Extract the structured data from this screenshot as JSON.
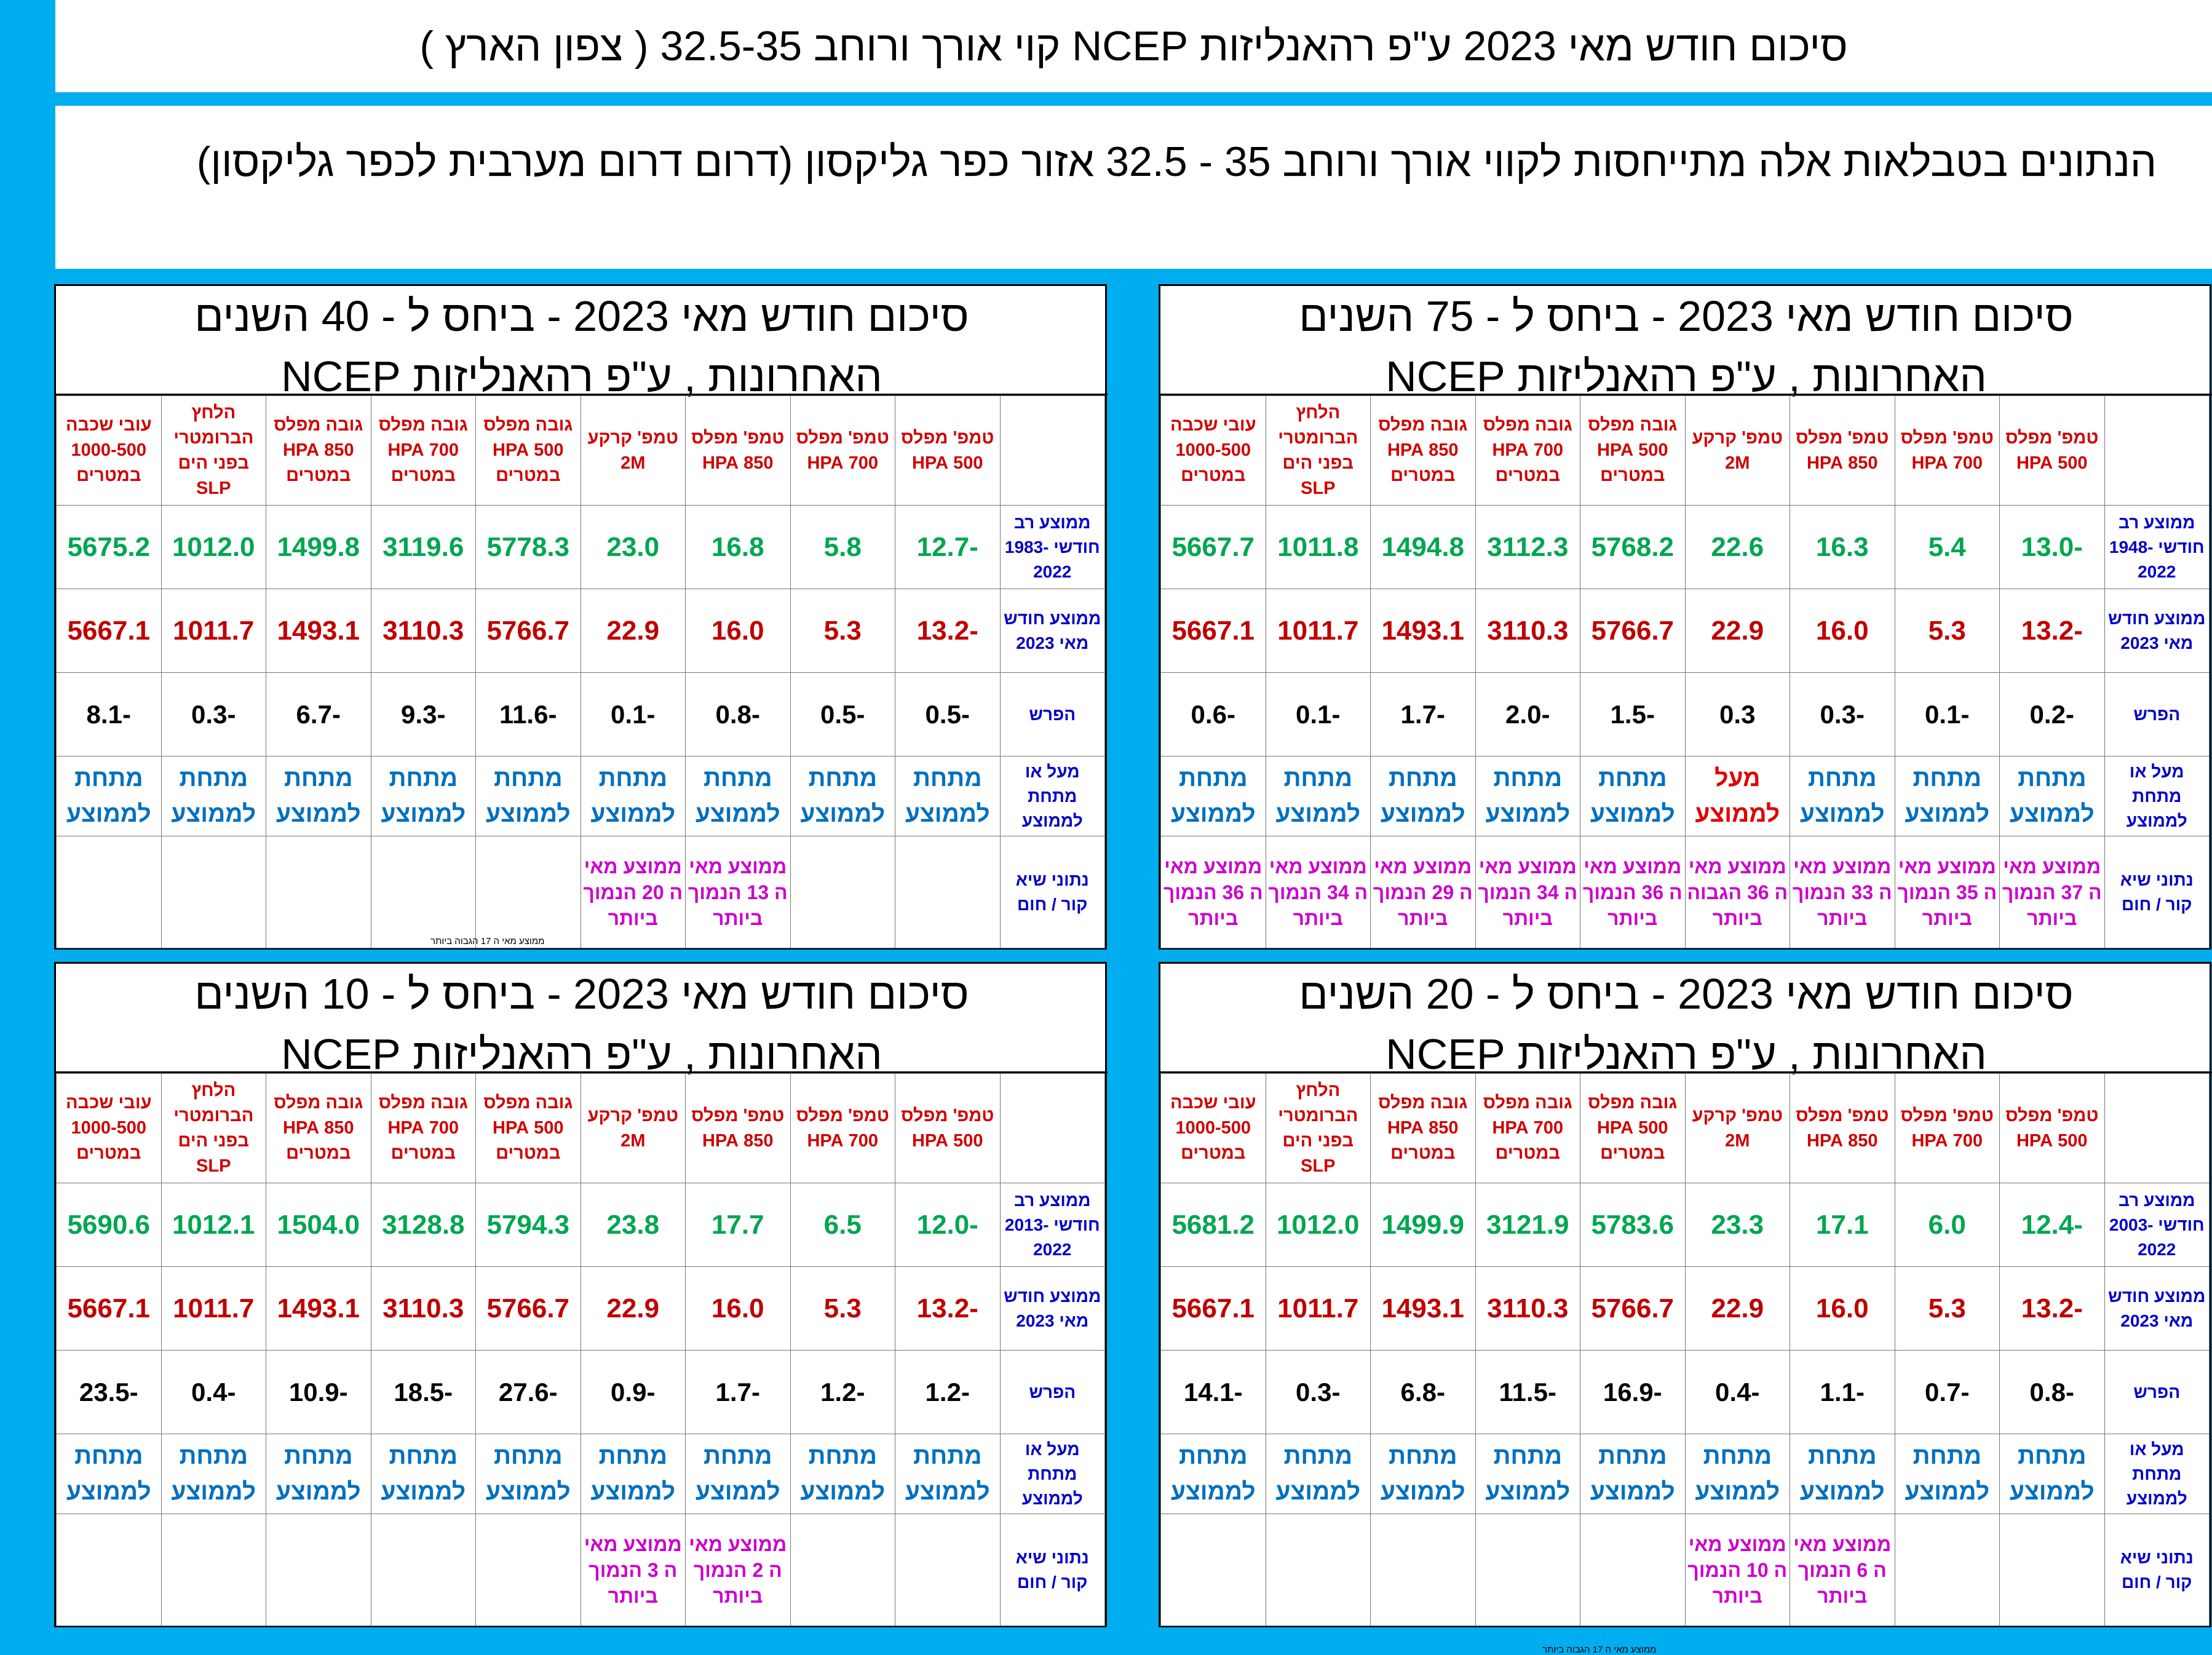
{
  "header": {
    "title": "סיכום חודש מאי 2023 ע\"פ רהאנליזות NCEP קוי אורך ורוחב 32.5-35 ( צפון הארץ )",
    "intro": "הנתונים בטבלאות אלה מתייחסות לקווי אורך ורוחב 35 - 32.5      אזור כפר  גליקסון  (דרום דרום מערבית לכפר גליקסון)"
  },
  "columns": [
    "טמפ' מפלס 500 HPA",
    "טמפ' מפלס 700 HPA",
    "טמפ' מפלס 850 HPA",
    "טמפ' קרקע 2M",
    "גובה מפלס 500 HPA במטרים",
    "גובה מפלס 700 HPA במטרים",
    "גובה מפלס 850 HPA במטרים",
    "הלחץ הברומטרי בפני הים SLP",
    "עובי שכבה 1000-500 במטרים"
  ],
  "rows": {
    "current": "ממוצע חודש מאי 2023",
    "diff": "הפרש",
    "above_below": "מעל או מתחת לממוצע",
    "extreme": "נתוני שיא קור / חום"
  },
  "current_values": [
    "-13.2",
    "5.3",
    "16.0",
    "22.9",
    "5766.7",
    "3110.3",
    "1493.1",
    "1011.7",
    "5667.1"
  ],
  "panels": {
    "tr": {
      "title": "סיכום חודש מאי  2023  - ביחס ל - 75 השנים האחרונות  , ע\"פ רהאנליזות NCEP",
      "avg_label": "ממוצע רב חודשי 1948-2022",
      "avg": [
        "-13.0",
        "5.4",
        "16.3",
        "22.6",
        "5768.2",
        "3112.3",
        "1494.8",
        "1011.8",
        "5667.7"
      ],
      "diff": [
        "-0.2",
        "-0.1",
        "-0.3",
        "0.3",
        "-1.5",
        "-2.0",
        "-1.7",
        "-0.1",
        "-0.6"
      ],
      "ab": [
        "מתחת לממוצע",
        "מתחת לממוצע",
        "מתחת לממוצע",
        "מעל לממוצע",
        "מתחת לממוצע",
        "מתחת לממוצע",
        "מתחת לממוצע",
        "מתחת לממוצע",
        "מתחת לממוצע"
      ],
      "ab_above": [
        false,
        false,
        false,
        true,
        false,
        false,
        false,
        false,
        false
      ],
      "ex": [
        "ממוצע מאי ה 37 הנמוך ביותר",
        "ממוצע מאי ה 35 הנמוך ביותר",
        "ממוצע מאי ה 33 הנמוך ביותר",
        "ממוצע מאי ה 36 הגבוה ביותר",
        "ממוצע מאי ה 36 הנמוך ביותר",
        "ממוצע מאי ה 34 הנמוך ביותר",
        "ממוצע מאי ה 29 הנמוך ביותר",
        "ממוצע מאי ה 34 הנמוך ביותר",
        "ממוצע מאי ה 36 הנמוך ביותר"
      ]
    },
    "tl": {
      "title": "סיכום חודש מאי  2023  - ביחס ל - 40 השנים האחרונות  , ע\"פ רהאנליזות NCEP",
      "avg_label": "ממוצע רב חודשי 1983-2022",
      "avg": [
        "-12.7",
        "5.8",
        "16.8",
        "23.0",
        "5778.3",
        "3119.6",
        "1499.8",
        "1012.0",
        "5675.2"
      ],
      "diff": [
        "-0.5",
        "-0.5",
        "-0.8",
        "-0.1",
        "-11.6",
        "-9.3",
        "-6.7",
        "-0.3",
        "-8.1"
      ],
      "ab": [
        "מתחת לממוצע",
        "מתחת לממוצע",
        "מתחת לממוצע",
        "מתחת לממוצע",
        "מתחת לממוצע",
        "מתחת לממוצע",
        "מתחת לממוצע",
        "מתחת לממוצע",
        "מתחת לממוצע"
      ],
      "ab_above": [
        false,
        false,
        false,
        false,
        false,
        false,
        false,
        false,
        false
      ],
      "ex": [
        "",
        "",
        "ממוצע מאי ה 13 הנמוך ביותר",
        "ממוצע מאי ה 20 הנמוך ביותר",
        "",
        "",
        "",
        "",
        ""
      ],
      "footnote": "ממוצע מאי ה 17 הגבוה ביותר"
    },
    "br": {
      "title": "סיכום חודש מאי  2023  - ביחס ל - 20 השנים האחרונות  , ע\"פ רהאנליזות NCEP",
      "avg_label": "ממוצע רב חודשי 2003-2022",
      "avg": [
        "-12.4",
        "6.0",
        "17.1",
        "23.3",
        "5783.6",
        "3121.9",
        "1499.9",
        "1012.0",
        "5681.2"
      ],
      "diff": [
        "-0.8",
        "-0.7",
        "-1.1",
        "-0.4",
        "-16.9",
        "-11.5",
        "-6.8",
        "-0.3",
        "-14.1"
      ],
      "ab": [
        "מתחת לממוצע",
        "מתחת לממוצע",
        "מתחת לממוצע",
        "מתחת לממוצע",
        "מתחת לממוצע",
        "מתחת לממוצע",
        "מתחת לממוצע",
        "מתחת לממוצע",
        "מתחת לממוצע"
      ],
      "ab_above": [
        false,
        false,
        false,
        false,
        false,
        false,
        false,
        false,
        false
      ],
      "ex": [
        "",
        "",
        "ממוצע מאי ה 6 הנמוך ביותר",
        "ממוצע מאי ה 10 הנמוך ביותר",
        "",
        "",
        "",
        "",
        ""
      ],
      "footnote": "ממוצע מאי ה 17 הגבוה ביותר"
    },
    "bl": {
      "title": "סיכום חודש מאי  2023  - ביחס ל - 10 השנים האחרונות  , ע\"פ רהאנליזות NCEP",
      "avg_label": "ממוצע רב חודשי 2013-2022",
      "avg": [
        "-12.0",
        "6.5",
        "17.7",
        "23.8",
        "5794.3",
        "3128.8",
        "1504.0",
        "1012.1",
        "5690.6"
      ],
      "diff": [
        "-1.2",
        "-1.2",
        "-1.7",
        "-0.9",
        "-27.6",
        "-18.5",
        "-10.9",
        "-0.4",
        "-23.5"
      ],
      "ab": [
        "מתחת לממוצע",
        "מתחת לממוצע",
        "מתחת לממוצע",
        "מתחת לממוצע",
        "מתחת לממוצע",
        "מתחת לממוצע",
        "מתחת לממוצע",
        "מתחת לממוצע",
        "מתחת לממוצע"
      ],
      "ab_above": [
        false,
        false,
        false,
        false,
        false,
        false,
        false,
        false,
        false
      ],
      "ex": [
        "",
        "",
        "ממוצע מאי ה 2 הנמוך ביותר",
        "ממוצע מאי ה 3 הנמוך ביותר",
        "",
        "",
        "",
        "",
        ""
      ]
    }
  },
  "colors": {
    "background": "#00AEEF",
    "average": "#00A651",
    "current": "#C00000",
    "label": "#0000CC",
    "below": "#0070C0",
    "above": "#E00000",
    "record": "#CC00CC"
  }
}
